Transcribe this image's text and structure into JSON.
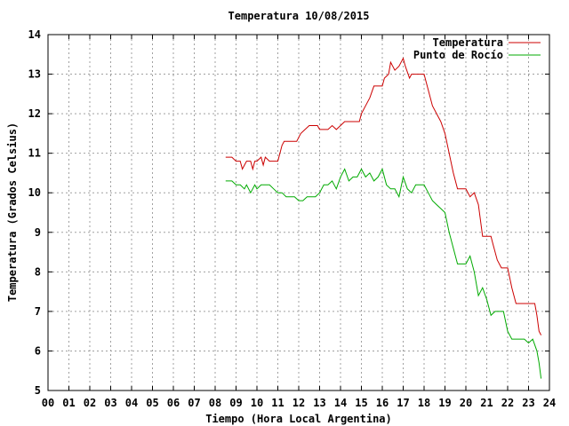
{
  "chart_data": {
    "type": "line",
    "title": "Temperatura 10/08/2015",
    "xlabel": "Tiempo (Hora Local Argentina)",
    "ylabel": "Temperatura (Grados Celsius)",
    "xlim": [
      0,
      24
    ],
    "ylim": [
      5,
      14
    ],
    "x_ticks": [
      0,
      1,
      2,
      3,
      4,
      5,
      6,
      7,
      8,
      9,
      10,
      11,
      12,
      13,
      14,
      15,
      16,
      17,
      18,
      19,
      20,
      21,
      22,
      23,
      24
    ],
    "x_tick_labels": [
      "00",
      "01",
      "02",
      "03",
      "04",
      "05",
      "06",
      "07",
      "08",
      "09",
      "10",
      "11",
      "12",
      "13",
      "14",
      "15",
      "16",
      "17",
      "18",
      "19",
      "20",
      "21",
      "22",
      "23",
      "24"
    ],
    "y_ticks": [
      5,
      6,
      7,
      8,
      9,
      10,
      11,
      12,
      13,
      14
    ],
    "y_tick_labels": [
      "5",
      "6",
      "7",
      "8",
      "9",
      "10",
      "11",
      "12",
      "13",
      "14"
    ],
    "grid": true,
    "legend_position": "top-right",
    "series": [
      {
        "name": "Temperatura",
        "color": "#cc0000",
        "x": [
          8.5,
          8.8,
          9.0,
          9.2,
          9.3,
          9.5,
          9.7,
          9.8,
          9.9,
          10.0,
          10.2,
          10.3,
          10.4,
          10.6,
          10.8,
          11.0,
          11.2,
          11.3,
          11.5,
          11.7,
          11.9,
          12.0,
          12.1,
          12.3,
          12.5,
          12.7,
          12.9,
          13.0,
          13.2,
          13.4,
          13.6,
          13.8,
          14.0,
          14.2,
          14.3,
          14.5,
          14.7,
          14.9,
          15.0,
          15.2,
          15.4,
          15.6,
          15.8,
          16.0,
          16.1,
          16.3,
          16.4,
          16.6,
          16.8,
          16.9,
          17.0,
          17.1,
          17.3,
          17.4,
          17.6,
          17.8,
          18.0,
          18.2,
          18.4,
          18.6,
          18.8,
          19.0,
          19.2,
          19.4,
          19.6,
          19.8,
          20.0,
          20.2,
          20.4,
          20.6,
          20.8,
          21.0,
          21.2,
          21.3,
          21.5,
          21.7,
          21.9,
          22.0,
          22.2,
          22.4,
          22.6,
          22.8,
          23.0,
          23.2,
          23.3,
          23.4,
          23.5,
          23.6
        ],
        "y": [
          10.9,
          10.9,
          10.8,
          10.8,
          10.6,
          10.8,
          10.8,
          10.6,
          10.8,
          10.8,
          10.9,
          10.7,
          10.9,
          10.8,
          10.8,
          10.8,
          11.2,
          11.3,
          11.3,
          11.3,
          11.3,
          11.4,
          11.5,
          11.6,
          11.7,
          11.7,
          11.7,
          11.6,
          11.6,
          11.6,
          11.7,
          11.6,
          11.7,
          11.8,
          11.8,
          11.8,
          11.8,
          11.8,
          12.0,
          12.2,
          12.4,
          12.7,
          12.7,
          12.7,
          12.9,
          13.0,
          13.3,
          13.1,
          13.2,
          13.3,
          13.4,
          13.2,
          12.9,
          13.0,
          13.0,
          13.0,
          13.0,
          12.6,
          12.2,
          12.0,
          11.8,
          11.5,
          11.0,
          10.5,
          10.1,
          10.1,
          10.1,
          9.9,
          10.0,
          9.7,
          8.9,
          8.9,
          8.9,
          8.7,
          8.3,
          8.1,
          8.1,
          8.1,
          7.6,
          7.2,
          7.2,
          7.2,
          7.2,
          7.2,
          7.2,
          6.9,
          6.5,
          6.4
        ]
      },
      {
        "name": "Punto de Rocío",
        "color": "#00aa00",
        "x": [
          8.5,
          8.8,
          9.0,
          9.2,
          9.4,
          9.5,
          9.7,
          9.9,
          10.0,
          10.2,
          10.4,
          10.6,
          10.8,
          11.0,
          11.2,
          11.4,
          11.6,
          11.8,
          12.0,
          12.2,
          12.4,
          12.6,
          12.8,
          13.0,
          13.2,
          13.4,
          13.6,
          13.8,
          14.0,
          14.2,
          14.4,
          14.6,
          14.8,
          15.0,
          15.2,
          15.4,
          15.6,
          15.8,
          16.0,
          16.2,
          16.4,
          16.6,
          16.8,
          17.0,
          17.2,
          17.4,
          17.6,
          17.8,
          18.0,
          18.2,
          18.4,
          18.6,
          18.8,
          19.0,
          19.2,
          19.4,
          19.6,
          19.8,
          20.0,
          20.2,
          20.4,
          20.6,
          20.8,
          21.0,
          21.2,
          21.4,
          21.6,
          21.8,
          22.0,
          22.2,
          22.4,
          22.6,
          22.8,
          23.0,
          23.2,
          23.4,
          23.5,
          23.6
        ],
        "y": [
          10.3,
          10.3,
          10.2,
          10.2,
          10.1,
          10.2,
          10.0,
          10.2,
          10.1,
          10.2,
          10.2,
          10.2,
          10.1,
          10.0,
          10.0,
          9.9,
          9.9,
          9.9,
          9.8,
          9.8,
          9.9,
          9.9,
          9.9,
          10.0,
          10.2,
          10.2,
          10.3,
          10.1,
          10.4,
          10.6,
          10.3,
          10.4,
          10.4,
          10.6,
          10.4,
          10.5,
          10.3,
          10.4,
          10.6,
          10.2,
          10.1,
          10.1,
          9.9,
          10.4,
          10.1,
          10.0,
          10.2,
          10.2,
          10.2,
          10.0,
          9.8,
          9.7,
          9.6,
          9.5,
          9.0,
          8.6,
          8.2,
          8.2,
          8.2,
          8.4,
          8.0,
          7.4,
          7.6,
          7.3,
          6.9,
          7.0,
          7.0,
          7.0,
          6.5,
          6.3,
          6.3,
          6.3,
          6.3,
          6.2,
          6.3,
          6.0,
          5.7,
          5.3
        ]
      }
    ]
  }
}
